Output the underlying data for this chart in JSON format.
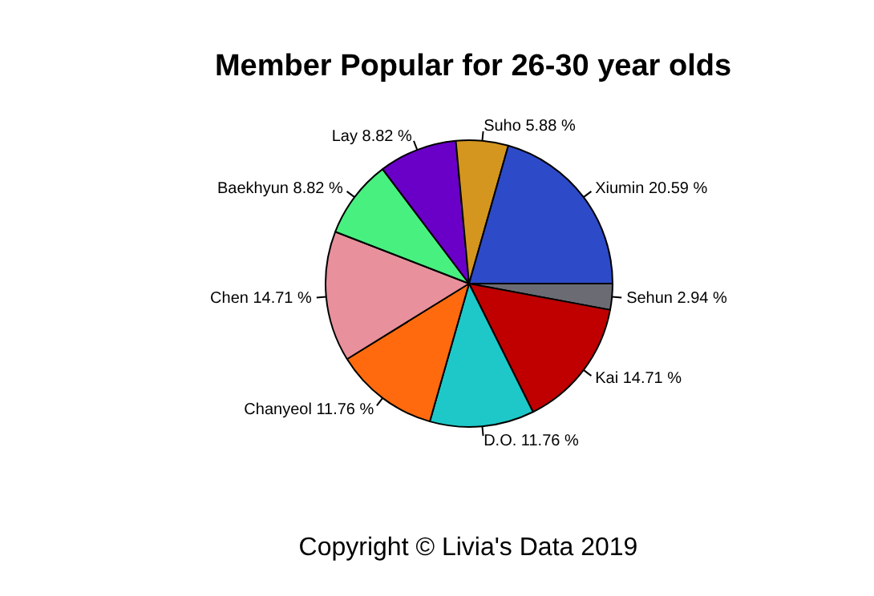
{
  "chart_data": {
    "type": "pie",
    "title": "Member Popular for 26-30 year olds",
    "categories": [
      "Sehun",
      "Kai",
      "D.O.",
      "Chanyeol",
      "Chen",
      "Baekhyun",
      "Lay",
      "Suho",
      "Xiumin"
    ],
    "values": [
      2.94,
      14.71,
      11.76,
      11.76,
      14.71,
      8.82,
      8.82,
      5.88,
      20.59
    ],
    "value_labels": [
      "2.94 %",
      "14.71 %",
      "11.76 %",
      "11.76 %",
      "14.71 %",
      "8.82 %",
      "8.82 %",
      "5.88 %",
      "20.59 %"
    ],
    "colors": [
      "#6b6b73",
      "#c00000",
      "#1ec8c8",
      "#ff6a0e",
      "#e8909c",
      "#48f080",
      "#6a00c8",
      "#d4961e",
      "#2d4bc8"
    ],
    "legend": false,
    "annotations": [
      "Copyright © Livia's Data 2019"
    ]
  }
}
